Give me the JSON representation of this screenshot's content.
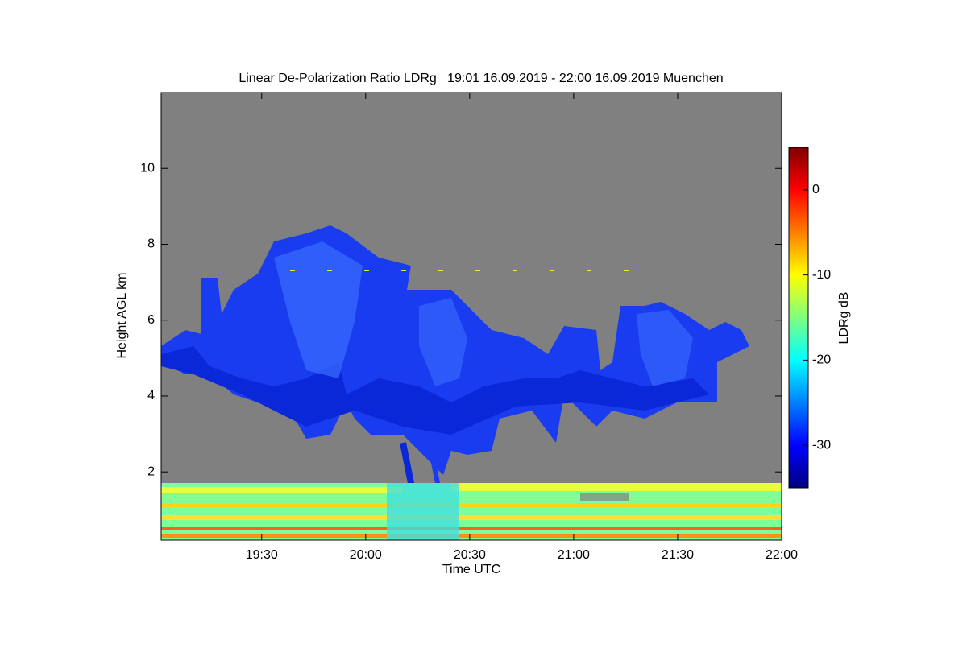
{
  "chart_data": {
    "type": "heatmap",
    "title": "Linear De-Polarization Ratio LDRg   19:01 16.09.2019 - 22:00 16.09.2019 Muenchen",
    "x_label": "Time UTC",
    "y_label": "Height AGL km",
    "xlim": [
      "19:01",
      "22:00"
    ],
    "xticks": [
      "19:30",
      "20:00",
      "20:30",
      "21:00",
      "21:30",
      "22:00"
    ],
    "ylim": [
      0.2,
      12
    ],
    "yticks": [
      2,
      4,
      6,
      8,
      10
    ],
    "colorbar_label": "LDRg dB",
    "clim": [
      -35,
      5
    ],
    "cticks": [
      -30,
      -20,
      -10,
      0
    ],
    "colormap": [
      "#00007f",
      "#0000ff",
      "#007fff",
      "#00ffff",
      "#7fff7f",
      "#ffff00",
      "#ff7f00",
      "#ff0000",
      "#7f0000"
    ],
    "missing_color": "#808080"
  }
}
